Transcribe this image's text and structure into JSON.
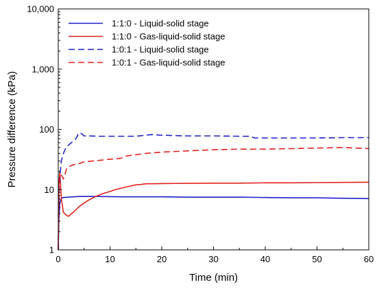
{
  "chart_data": {
    "type": "line",
    "title": "",
    "xlabel": "Time (min)",
    "ylabel": "Pressure difference (kPa)",
    "xlim": [
      0,
      60
    ],
    "ylim": [
      1,
      10000
    ],
    "yscale": "log",
    "grid": false,
    "legend_position": "top-left",
    "x_ticks": [
      0,
      10,
      20,
      30,
      40,
      50,
      60
    ],
    "x_tick_labels": [
      "0",
      "10",
      "20",
      "30",
      "40",
      "50",
      "60"
    ],
    "y_ticks": [
      1,
      10,
      100,
      1000,
      10000
    ],
    "y_tick_labels": [
      "1",
      "10",
      "100",
      "1,000",
      "10,000"
    ],
    "series": [
      {
        "name": "1:1:0 - Liquid-solid stage",
        "color": "#1f1fcc",
        "dash": "solid",
        "x": [
          0,
          0.1,
          0.3,
          0.6,
          1,
          2,
          3,
          4,
          5,
          8,
          12,
          15,
          20,
          25,
          30,
          35,
          40,
          45,
          50,
          55,
          60
        ],
        "y": [
          1,
          3,
          6,
          7.2,
          7.4,
          7.5,
          7.6,
          7.7,
          7.7,
          7.7,
          7.6,
          7.6,
          7.6,
          7.5,
          7.5,
          7.5,
          7.4,
          7.3,
          7.3,
          7.2,
          7.1
        ]
      },
      {
        "name": "1:1:0 - Gas-liquid-solid stage",
        "color": "#e0201c",
        "dash": "solid",
        "x": [
          0,
          0.15,
          0.3,
          0.6,
          1,
          1.5,
          2,
          3,
          4,
          5,
          6,
          7,
          8,
          9,
          10,
          11,
          12,
          13,
          14,
          15,
          16,
          17,
          18,
          20,
          25,
          30,
          35,
          40,
          45,
          50,
          55,
          60
        ],
        "y": [
          1,
          12,
          20,
          7,
          4.2,
          3.8,
          3.6,
          4.3,
          5.2,
          6,
          6.8,
          7.5,
          8.2,
          8.8,
          9.3,
          10,
          10.5,
          11,
          11.5,
          12,
          12.2,
          12.5,
          12.5,
          12.6,
          12.7,
          12.8,
          12.8,
          13,
          13,
          13.1,
          13.2,
          13.3
        ]
      },
      {
        "name": "1:0:1 - Liquid-solid stage",
        "color": "#1f1fcc",
        "dash": "dashed",
        "x": [
          0,
          0.1,
          0.2,
          0.4,
          0.6,
          1,
          1.5,
          2,
          2.5,
          3,
          3.5,
          4,
          4.5,
          5,
          6,
          8,
          10,
          15,
          18,
          20,
          25,
          30,
          35,
          37,
          38,
          40,
          45,
          50,
          55,
          60
        ],
        "y": [
          1,
          5,
          12,
          20,
          30,
          40,
          50,
          55,
          60,
          65,
          72,
          88,
          85,
          78,
          78,
          77,
          77,
          77,
          82,
          80,
          78,
          78,
          77,
          77,
          72,
          72,
          72,
          72,
          73,
          73
        ]
      },
      {
        "name": "1:0:1 - Gas-liquid-solid stage",
        "color": "#e0201c",
        "dash": "dashed",
        "x": [
          0,
          0.1,
          0.2,
          0.4,
          0.7,
          1,
          1.3,
          1.6,
          2,
          3,
          4,
          5,
          7,
          10,
          12,
          13,
          15,
          17,
          20,
          25,
          30,
          35,
          40,
          45,
          50,
          55,
          60
        ],
        "y": [
          1,
          10,
          16,
          18,
          17,
          15,
          18,
          22,
          24,
          26,
          27,
          29,
          30,
          32,
          33,
          36,
          38,
          40,
          42,
          44,
          46,
          47,
          47,
          48,
          49,
          50,
          48
        ]
      }
    ]
  }
}
